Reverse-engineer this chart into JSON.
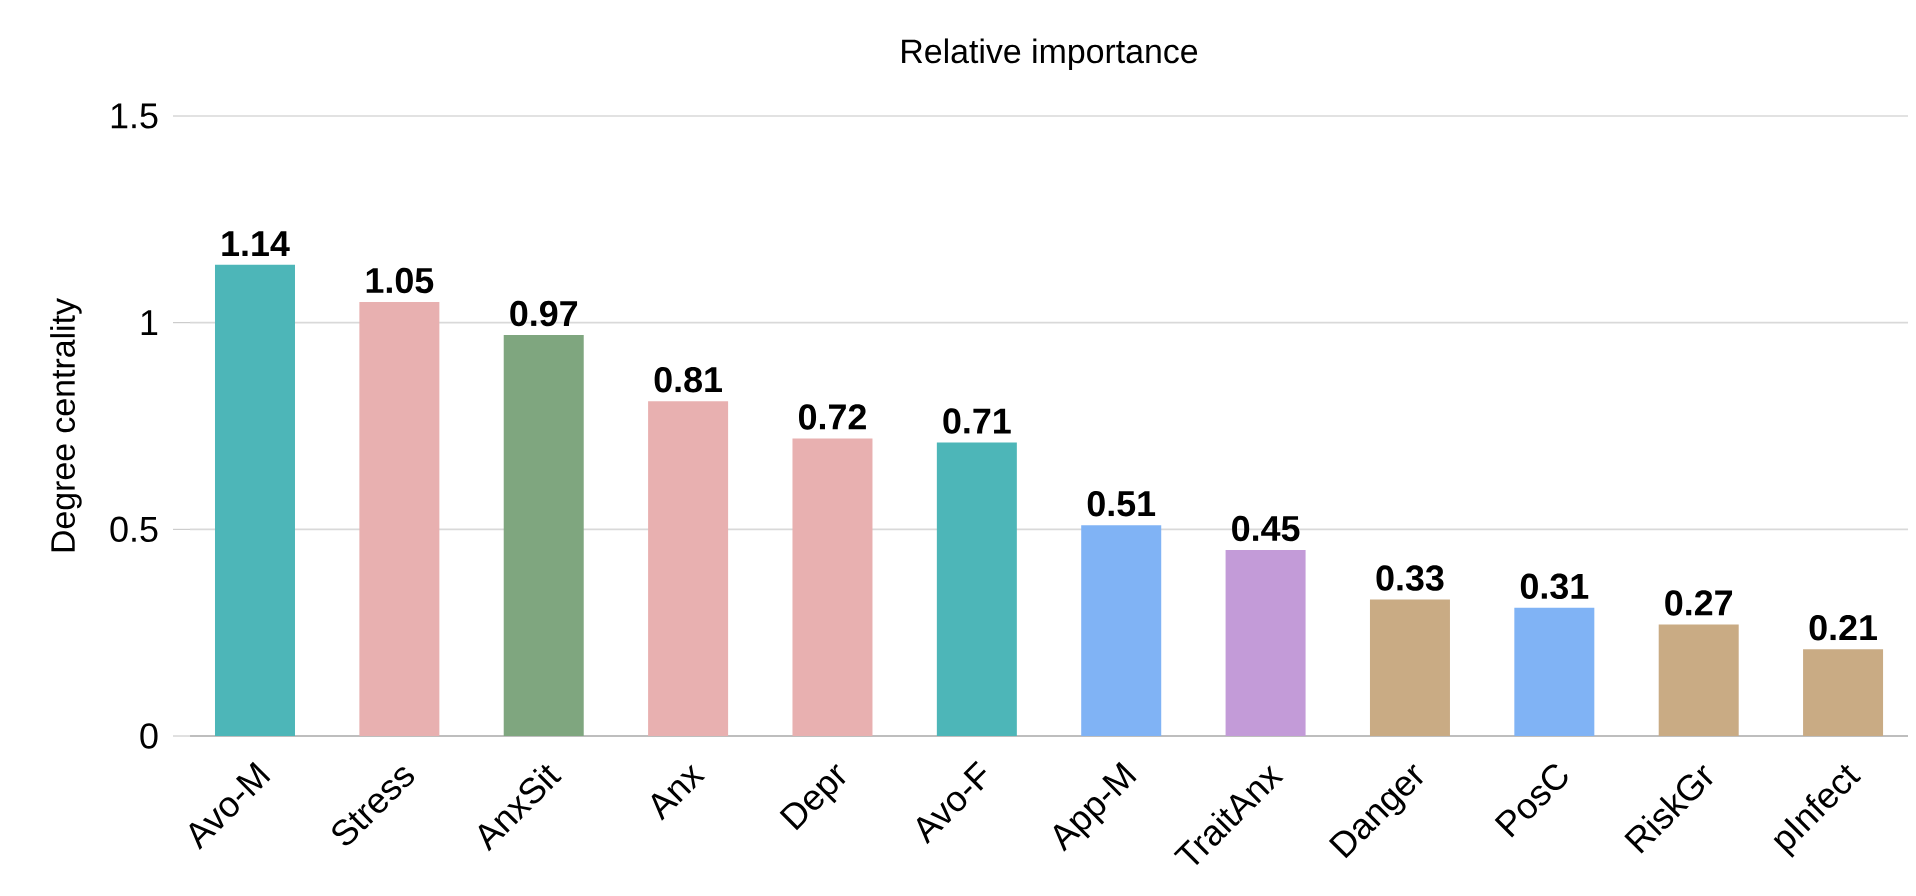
{
  "chart_data": {
    "type": "bar",
    "title": "Relative importance",
    "ylabel": "Degree centrality",
    "categories": [
      "Avo-M",
      "Stress",
      "AnxSit",
      "Anx",
      "Depr",
      "Avo-F",
      "App-M",
      "TraitAnx",
      "Danger",
      "PosC",
      "RiskGr",
      "pInfect"
    ],
    "values": [
      1.14,
      1.05,
      0.97,
      0.81,
      0.72,
      0.71,
      0.51,
      0.45,
      0.33,
      0.31,
      0.27,
      0.21
    ],
    "colors": [
      "#4db6b8",
      "#e8b0b0",
      "#7fa67f",
      "#e8b0b0",
      "#e8b0b0",
      "#4db6b8",
      "#80b3f5",
      "#c39bd8",
      "#c9ab84",
      "#80b3f5",
      "#c9ab84",
      "#c9ab84"
    ],
    "ylim": [
      0,
      1.5
    ],
    "yticks": [
      0,
      0.5,
      1,
      1.5
    ],
    "grid": "y",
    "data_labels": true
  }
}
